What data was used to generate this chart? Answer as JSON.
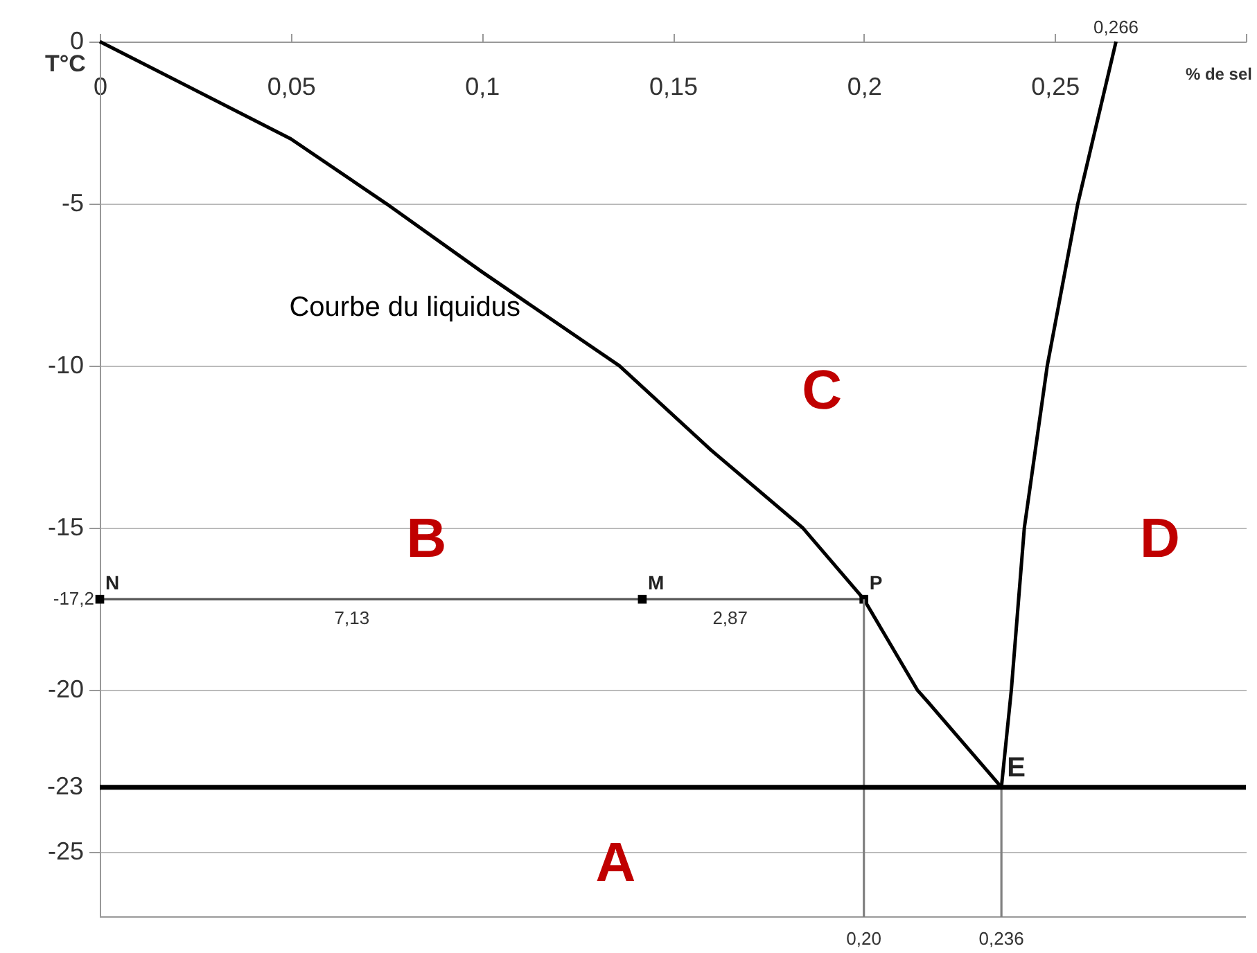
{
  "chart_data": {
    "type": "line",
    "xlabel": "% de sel",
    "ylabel": "T°C",
    "xlim": [
      0,
      0.3
    ],
    "ylim": [
      -27,
      0
    ],
    "xticks": [
      0,
      {
        "value": 0.05,
        "label": "0,05"
      },
      {
        "value": 0.1,
        "label": "0,1"
      },
      {
        "value": 0.15,
        "label": "0,15"
      },
      {
        "value": 0.2,
        "label": "0,2"
      },
      {
        "value": 0.25,
        "label": "0,25"
      },
      {
        "value": 0.3,
        "label": null
      }
    ],
    "yticks": [
      0,
      -5,
      -10,
      -15,
      -20,
      -25
    ],
    "grid": "y",
    "series": [
      {
        "color": "#000000",
        "marker": "none",
        "x": [
          0,
          0.05,
          0.075,
          0.1,
          0.136,
          0.16,
          0.184,
          0.2,
          0.214,
          0.217,
          0.236
        ],
        "values": [
          0,
          -3,
          -5,
          -7.1,
          -10,
          -12.6,
          -15,
          -17.2,
          -20,
          -20.4,
          -23
        ]
      },
      {
        "color": "#000000",
        "marker": "none",
        "x": [
          0.236,
          0.2386,
          0.242,
          0.248,
          0.256,
          0.266
        ],
        "values": [
          -23,
          -20,
          -15,
          -10,
          -5,
          0
        ]
      },
      {
        "color": "#555555",
        "marker": "square",
        "x": [
          0,
          0.142,
          0.2
        ],
        "values": [
          -17.2,
          -17.2,
          -17.2
        ]
      },
      {
        "color": "#808080",
        "marker": "none",
        "x": [
          0.2,
          0.2
        ],
        "values": [
          -17.2,
          -27
        ]
      },
      {
        "color": "#808080",
        "marker": "none",
        "x": [
          0.236,
          0.236
        ],
        "values": [
          -23,
          -27
        ]
      }
    ],
    "ref_lines": [
      {
        "axis": "y",
        "value": -23,
        "label": "-23",
        "color": "#000000"
      }
    ],
    "annotations": [
      {
        "text": "Courbe du liquidus",
        "x": 0.113,
        "y": -8.2
      },
      "A",
      "B",
      "C",
      "D",
      {
        "text": "N",
        "x": 0,
        "y": -17.2
      },
      {
        "text": "M",
        "x": 0.142,
        "y": -17.2
      },
      {
        "text": "P",
        "x": 0.2,
        "y": -17.2
      },
      {
        "text": "E",
        "x": 0.236,
        "y": -23
      },
      {
        "text": "7,13",
        "x": 0.066,
        "y": -17.2
      },
      {
        "text": "2,87",
        "x": 0.165,
        "y": -17.2
      },
      {
        "text": "0,266",
        "x": 0.266,
        "y": 0
      },
      {
        "text": "-17,2",
        "x": 0,
        "y": -17.2
      },
      {
        "text": "0,20",
        "x": 0.2,
        "y": -27
      },
      {
        "text": "0,236",
        "x": 0.236,
        "y": -27
      }
    ]
  }
}
